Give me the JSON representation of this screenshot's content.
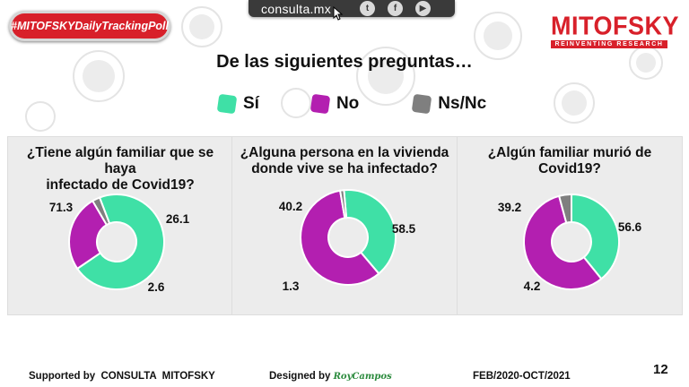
{
  "header": {
    "hashtag": "#MITOFSKYDailyTrackingPoll",
    "site": "consulta.mx",
    "social_icons": [
      "twitter-icon",
      "facebook-icon",
      "youtube-icon"
    ],
    "logo": "MITOFSKY",
    "logo_tagline": "REINVENTING RESEARCH",
    "title": "De las siguientes preguntas…"
  },
  "colors": {
    "si": "#3fe0a6",
    "no": "#b31fb0",
    "nsnc": "#7f7f7f",
    "brand": "#d8202a"
  },
  "legend": [
    {
      "label": "Sí",
      "color": "#3fe0a6"
    },
    {
      "label": "No",
      "color": "#b31fb0"
    },
    {
      "label": "Ns/Nc",
      "color": "#7f7f7f"
    }
  ],
  "chart_data": [
    {
      "type": "pie",
      "title_lines": [
        "¿Tiene algún familiar que se haya",
        "infectado de Covid19?"
      ],
      "categories": [
        "Sí",
        "No",
        "Ns/Nc"
      ],
      "values": [
        71.3,
        26.1,
        2.6
      ],
      "labels": [
        "71.3",
        "26.1",
        "2.6"
      ]
    },
    {
      "type": "pie",
      "title_lines": [
        "¿Alguna persona en la vivienda",
        "donde vive se ha infectado?"
      ],
      "categories": [
        "Sí",
        "No",
        "Ns/Nc"
      ],
      "values": [
        40.2,
        58.5,
        1.3
      ],
      "labels": [
        "40.2",
        "58.5",
        "1.3"
      ]
    },
    {
      "type": "pie",
      "title_lines": [
        "¿Algún familiar murió de Covid19?"
      ],
      "categories": [
        "Sí",
        "No",
        "Ns/Nc"
      ],
      "values": [
        39.2,
        56.6,
        4.2
      ],
      "labels": [
        "39.2",
        "56.6",
        "4.2"
      ]
    }
  ],
  "footer": {
    "supported": "Supported by  CONSULTA  MITOFSKY",
    "designed_by": "Designed by",
    "designer": "RoyCampos",
    "period": "FEB/2020-OCT/2021",
    "page": "12"
  }
}
